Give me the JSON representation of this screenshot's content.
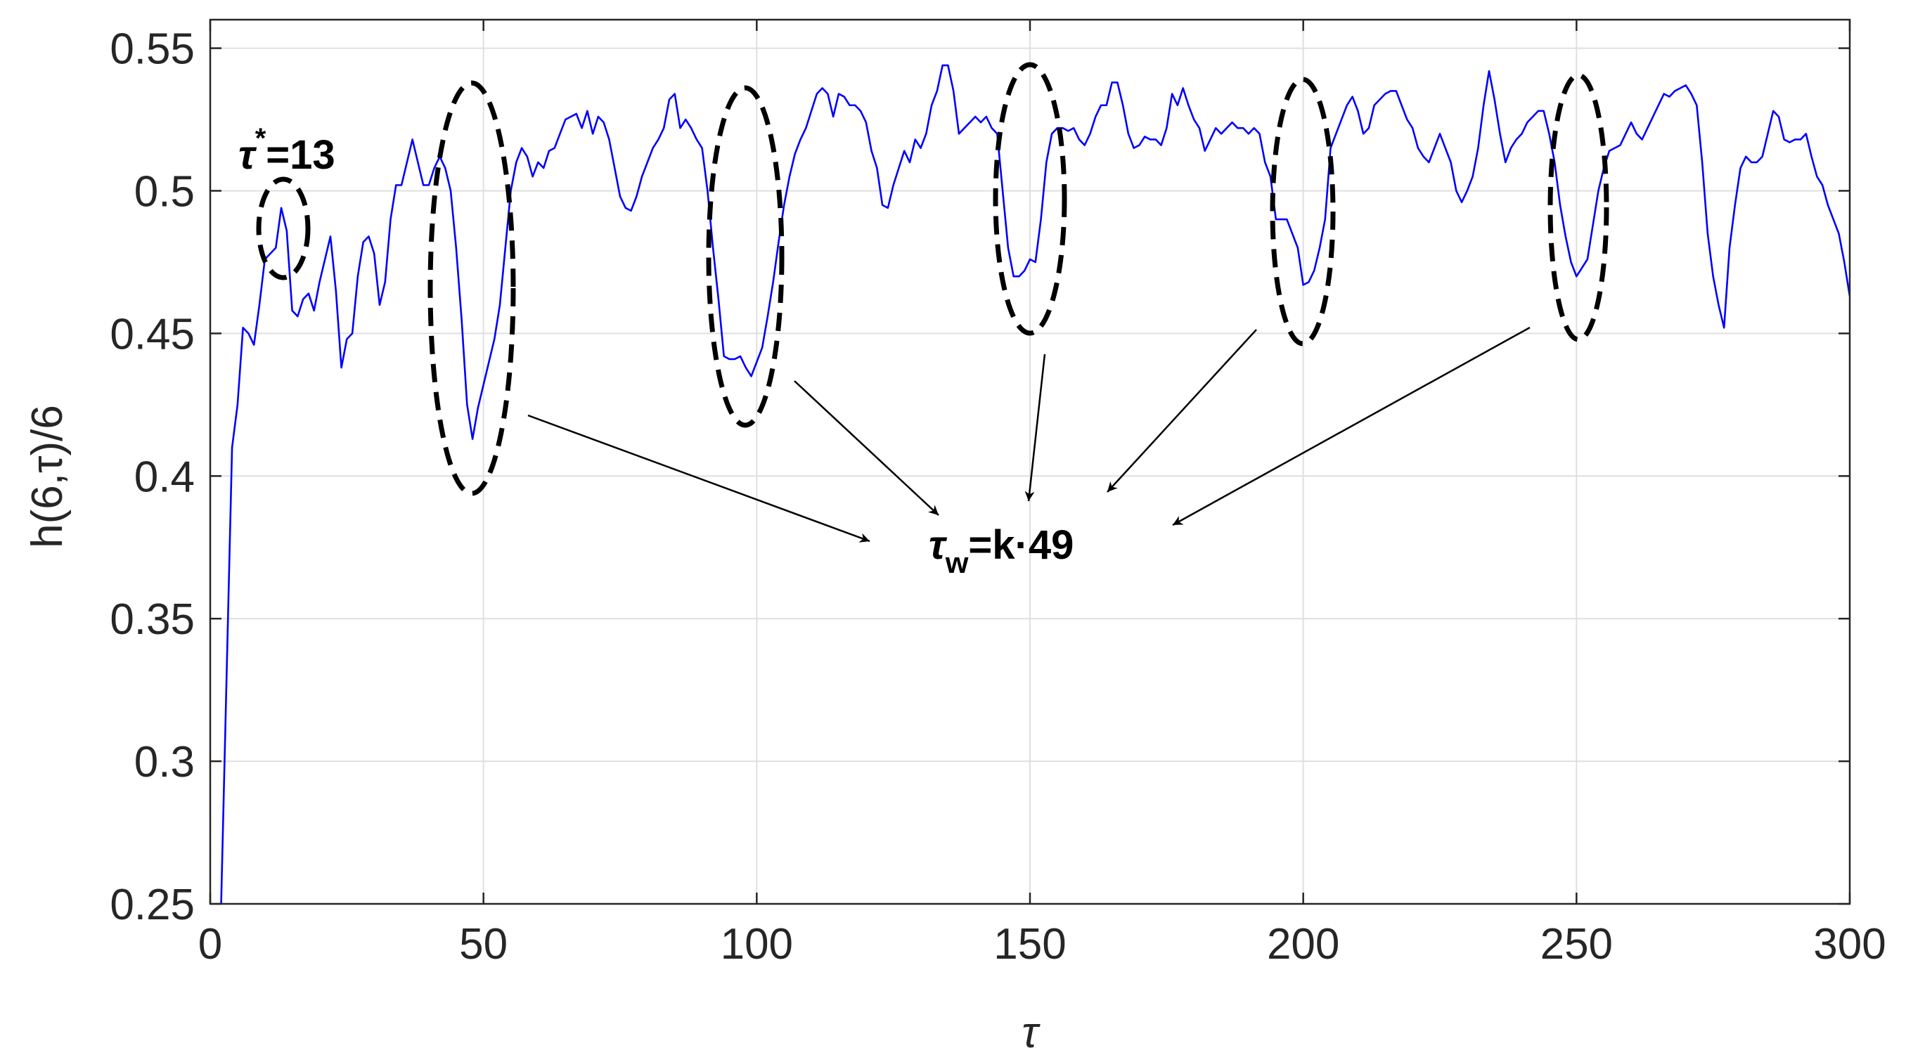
{
  "chart_data": {
    "type": "line",
    "xlabel": "τ",
    "ylabel": "h(6,τ)/6",
    "x": [
      2,
      3,
      4,
      5,
      6,
      7,
      8,
      9,
      10,
      11,
      12,
      13,
      14,
      15,
      16,
      17,
      18,
      19,
      20,
      21,
      22,
      23,
      24,
      25,
      26,
      27,
      28,
      29,
      30,
      31,
      32,
      33,
      34,
      35,
      36,
      37,
      38,
      39,
      40,
      41,
      42,
      43,
      44,
      45,
      46,
      47,
      48,
      49,
      50,
      51,
      52,
      53,
      54,
      55,
      56,
      57,
      58,
      59,
      60,
      61,
      62,
      63,
      64,
      65,
      66,
      67,
      68,
      69,
      70,
      71,
      72,
      73,
      74,
      75,
      76,
      77,
      78,
      79,
      80,
      81,
      82,
      83,
      84,
      85,
      86,
      87,
      88,
      89,
      90,
      91,
      92,
      93,
      94,
      95,
      96,
      97,
      98,
      99,
      100,
      101,
      102,
      103,
      104,
      105,
      106,
      107,
      108,
      109,
      110,
      111,
      112,
      113,
      114,
      115,
      116,
      117,
      118,
      119,
      120,
      121,
      122,
      123,
      124,
      125,
      126,
      127,
      128,
      129,
      130,
      131,
      132,
      133,
      134,
      135,
      136,
      137,
      138,
      139,
      140,
      141,
      142,
      143,
      144,
      145,
      146,
      147,
      148,
      149,
      150,
      151,
      152,
      153,
      154,
      155,
      156,
      157,
      158,
      159,
      160,
      161,
      162,
      163,
      164,
      165,
      166,
      167,
      168,
      169,
      170,
      171,
      172,
      173,
      174,
      175,
      176,
      177,
      178,
      179,
      180,
      181,
      182,
      183,
      184,
      185,
      186,
      187,
      188,
      189,
      190,
      191,
      192,
      193,
      194,
      195,
      196,
      197,
      198,
      199,
      200,
      201,
      202,
      203,
      204,
      205,
      206,
      207,
      208,
      209,
      210,
      211,
      212,
      213,
      214,
      215,
      216,
      217,
      218,
      219,
      220,
      221,
      222,
      223,
      224,
      225,
      226,
      227,
      228,
      229,
      230,
      231,
      232,
      233,
      234,
      235,
      236,
      237,
      238,
      239,
      240,
      241,
      242,
      243,
      244,
      245,
      246,
      247,
      248,
      249,
      250,
      251,
      252,
      253,
      254,
      255,
      256,
      257,
      258,
      259,
      260,
      261,
      262,
      263,
      264,
      265,
      266,
      267,
      268,
      269,
      270,
      271,
      272,
      273,
      274,
      275,
      276,
      277,
      278,
      279,
      280,
      281,
      282,
      283,
      284,
      285,
      286,
      287,
      288,
      289,
      290,
      291,
      292,
      293,
      294,
      295,
      296,
      297,
      298,
      299,
      300
    ],
    "values": [
      0.25,
      0.33,
      0.41,
      0.425,
      0.452,
      0.45,
      0.446,
      0.46,
      0.476,
      0.478,
      0.48,
      0.494,
      0.486,
      0.458,
      0.456,
      0.462,
      0.464,
      0.458,
      0.468,
      0.476,
      0.484,
      0.465,
      0.438,
      0.448,
      0.45,
      0.47,
      0.482,
      0.484,
      0.478,
      0.46,
      0.468,
      0.49,
      0.502,
      0.502,
      0.51,
      0.518,
      0.51,
      0.502,
      0.502,
      0.508,
      0.512,
      0.508,
      0.5,
      0.48,
      0.455,
      0.425,
      0.413,
      0.424,
      0.432,
      0.44,
      0.448,
      0.46,
      0.48,
      0.5,
      0.51,
      0.515,
      0.512,
      0.505,
      0.51,
      0.508,
      0.514,
      0.515,
      0.52,
      0.525,
      0.526,
      0.527,
      0.522,
      0.528,
      0.52,
      0.526,
      0.524,
      0.518,
      0.508,
      0.498,
      0.494,
      0.493,
      0.498,
      0.505,
      0.51,
      0.515,
      0.518,
      0.522,
      0.532,
      0.534,
      0.522,
      0.525,
      0.522,
      0.518,
      0.515,
      0.5,
      0.48,
      0.462,
      0.442,
      0.441,
      0.441,
      0.442,
      0.438,
      0.435,
      0.44,
      0.445,
      0.456,
      0.468,
      0.482,
      0.495,
      0.505,
      0.513,
      0.518,
      0.522,
      0.528,
      0.534,
      0.536,
      0.534,
      0.526,
      0.534,
      0.533,
      0.53,
      0.53,
      0.528,
      0.524,
      0.514,
      0.508,
      0.495,
      0.494,
      0.502,
      0.508,
      0.514,
      0.51,
      0.518,
      0.515,
      0.52,
      0.53,
      0.535,
      0.544,
      0.544,
      0.535,
      0.52,
      0.522,
      0.524,
      0.526,
      0.524,
      0.526,
      0.522,
      0.52,
      0.5,
      0.48,
      0.47,
      0.47,
      0.472,
      0.476,
      0.475,
      0.49,
      0.51,
      0.52,
      0.522,
      0.522,
      0.521,
      0.522,
      0.518,
      0.516,
      0.52,
      0.526,
      0.53,
      0.53,
      0.538,
      0.538,
      0.53,
      0.52,
      0.515,
      0.516,
      0.519,
      0.518,
      0.518,
      0.516,
      0.522,
      0.534,
      0.53,
      0.536,
      0.53,
      0.525,
      0.522,
      0.514,
      0.518,
      0.522,
      0.52,
      0.522,
      0.524,
      0.522,
      0.522,
      0.52,
      0.522,
      0.52,
      0.51,
      0.505,
      0.49,
      0.49,
      0.49,
      0.485,
      0.48,
      0.467,
      0.468,
      0.472,
      0.48,
      0.49,
      0.515,
      0.52,
      0.525,
      0.53,
      0.533,
      0.528,
      0.52,
      0.522,
      0.53,
      0.532,
      0.534,
      0.535,
      0.535,
      0.53,
      0.525,
      0.522,
      0.515,
      0.512,
      0.51,
      0.515,
      0.52,
      0.515,
      0.51,
      0.5,
      0.496,
      0.5,
      0.505,
      0.515,
      0.53,
      0.542,
      0.532,
      0.52,
      0.51,
      0.515,
      0.518,
      0.52,
      0.524,
      0.526,
      0.528,
      0.528,
      0.52,
      0.51,
      0.495,
      0.484,
      0.475,
      0.47,
      0.473,
      0.476,
      0.488,
      0.5,
      0.508,
      0.514,
      0.515,
      0.516,
      0.52,
      0.524,
      0.52,
      0.518,
      0.522,
      0.526,
      0.53,
      0.534,
      0.533,
      0.535,
      0.536,
      0.537,
      0.534,
      0.53,
      0.51,
      0.485,
      0.47,
      0.46,
      0.452,
      0.48,
      0.495,
      0.508,
      0.512,
      0.51,
      0.51,
      0.512,
      0.52,
      0.528,
      0.526,
      0.518,
      0.517,
      0.518,
      0.518,
      0.52,
      0.512,
      0.505,
      0.502,
      0.495,
      0.49,
      0.485,
      0.475,
      0.463
    ],
    "color": "#0000ff",
    "xlim": [
      0,
      300
    ],
    "xticks": [
      0,
      50,
      100,
      150,
      200,
      250,
      300
    ],
    "ylim": [
      0.25,
      0.56
    ],
    "yticks": [
      0.25,
      0.3,
      0.35,
      0.4,
      0.45,
      0.5,
      0.55
    ],
    "grid": true,
    "annotations": [
      {
        "base": "τ",
        "sup": "*",
        "text": "=13"
      },
      {
        "base": "τ",
        "sub": "w",
        "text": "=k·49"
      }
    ]
  }
}
